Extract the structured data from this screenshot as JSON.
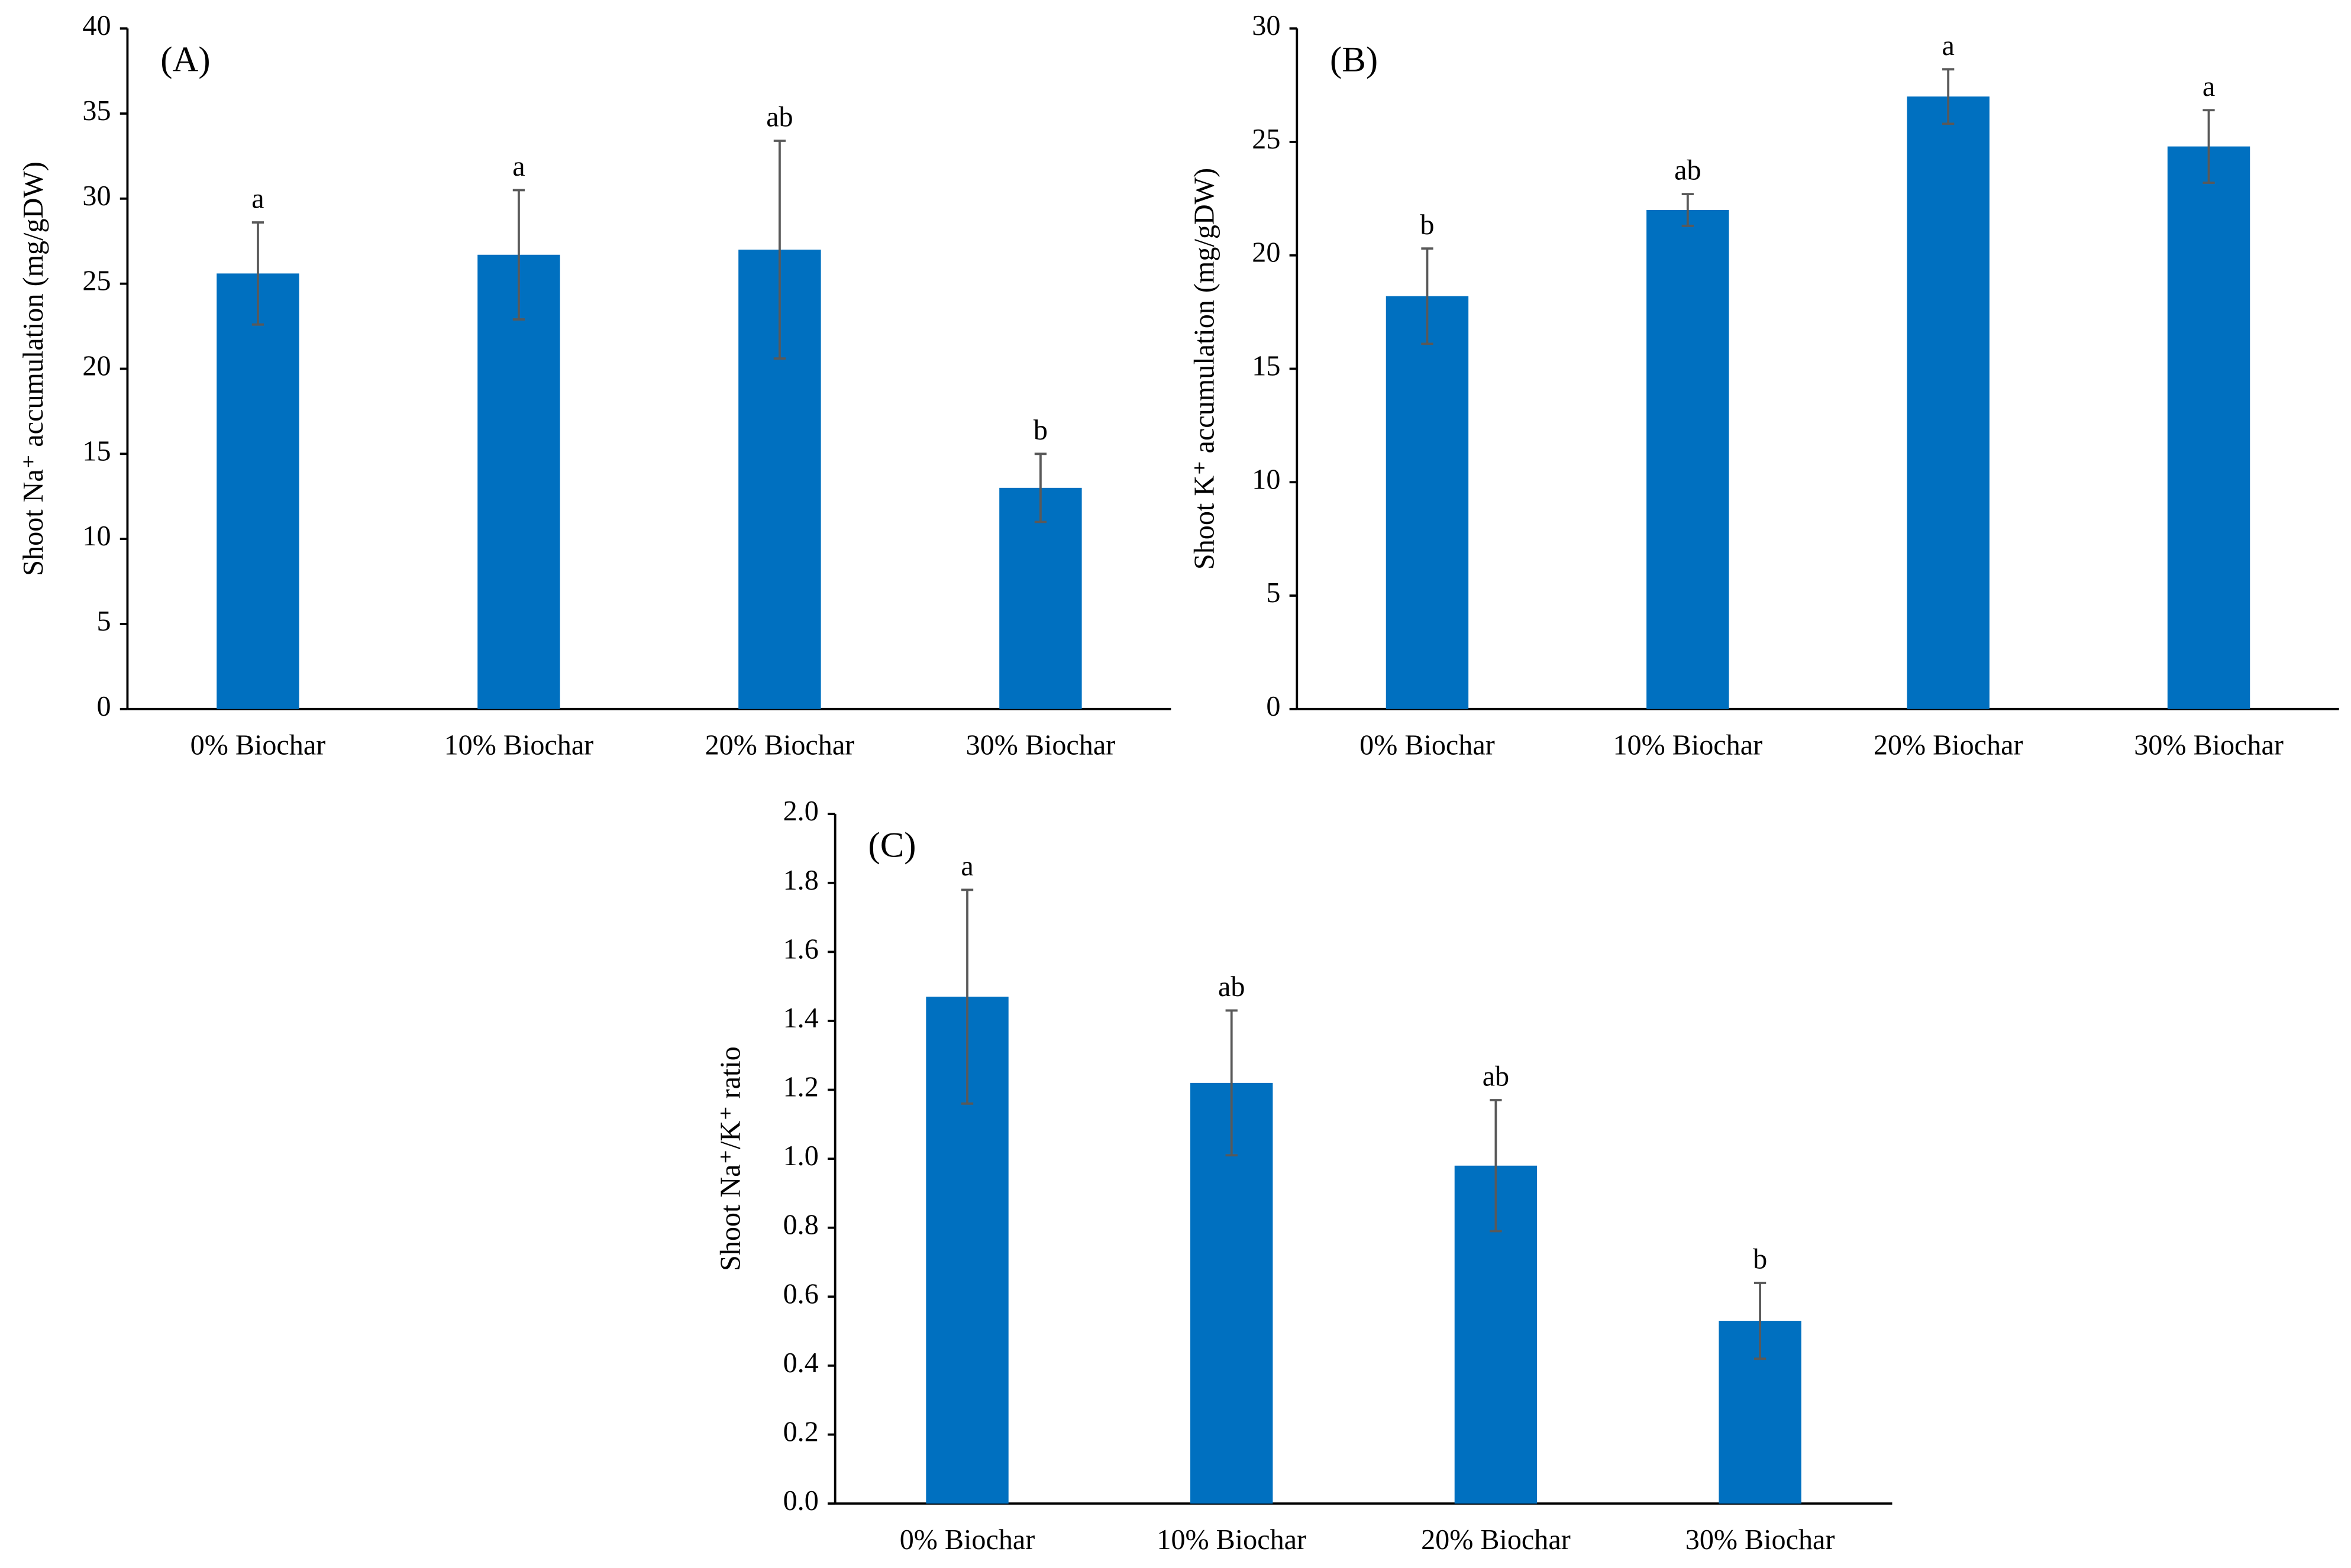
{
  "chart_data": [
    {
      "type": "bar",
      "title": "(A)",
      "y_label": "Shoot Na⁺ accumulation (mg/gDW)",
      "categories": [
        "0% Biochar",
        "10% Biochar",
        "20% Biochar",
        "30% Biochar"
      ],
      "values": [
        25.6,
        26.7,
        27.0,
        13.0
      ],
      "errors": [
        3.0,
        3.8,
        6.4,
        2.0
      ],
      "significance_letters": [
        "a",
        "a",
        "ab",
        "b"
      ],
      "color": "#0070c0",
      "error_color": "#595959",
      "ylim": [
        0,
        40
      ],
      "yticks": [
        0,
        5,
        10,
        15,
        20,
        25,
        30,
        35,
        40
      ]
    },
    {
      "type": "bar",
      "title": "(B)",
      "y_label": "Shoot K⁺ accumulation (mg/gDW)",
      "categories": [
        "0% Biochar",
        "10% Biochar",
        "20% Biochar",
        "30% Biochar"
      ],
      "values": [
        18.2,
        22.0,
        27.0,
        24.8
      ],
      "errors": [
        2.1,
        0.7,
        1.2,
        1.6
      ],
      "significance_letters": [
        "b",
        "ab",
        "a",
        "a"
      ],
      "color": "#0070c0",
      "error_color": "#595959",
      "ylim": [
        0,
        30
      ],
      "yticks": [
        0,
        5,
        10,
        15,
        20,
        25,
        30
      ]
    },
    {
      "type": "bar",
      "title": "(C)",
      "y_label": "Shoot Na⁺/K⁺ ratio",
      "categories": [
        "0% Biochar",
        "10% Biochar",
        "20% Biochar",
        "30% Biochar"
      ],
      "values": [
        1.47,
        1.22,
        0.98,
        0.53
      ],
      "errors": [
        0.31,
        0.21,
        0.19,
        0.11
      ],
      "significance_letters": [
        "a",
        "ab",
        "ab",
        "b"
      ],
      "color": "#0070c0",
      "error_color": "#595959",
      "ylim": [
        0,
        2
      ],
      "yticks": [
        {
          "value": 0,
          "label": "0.0"
        },
        0.2,
        0.4,
        0.6,
        0.8,
        {
          "value": 1,
          "label": "1.0"
        },
        1.2,
        1.4,
        1.6,
        1.8,
        {
          "value": 2,
          "label": "2.0"
        }
      ]
    }
  ]
}
